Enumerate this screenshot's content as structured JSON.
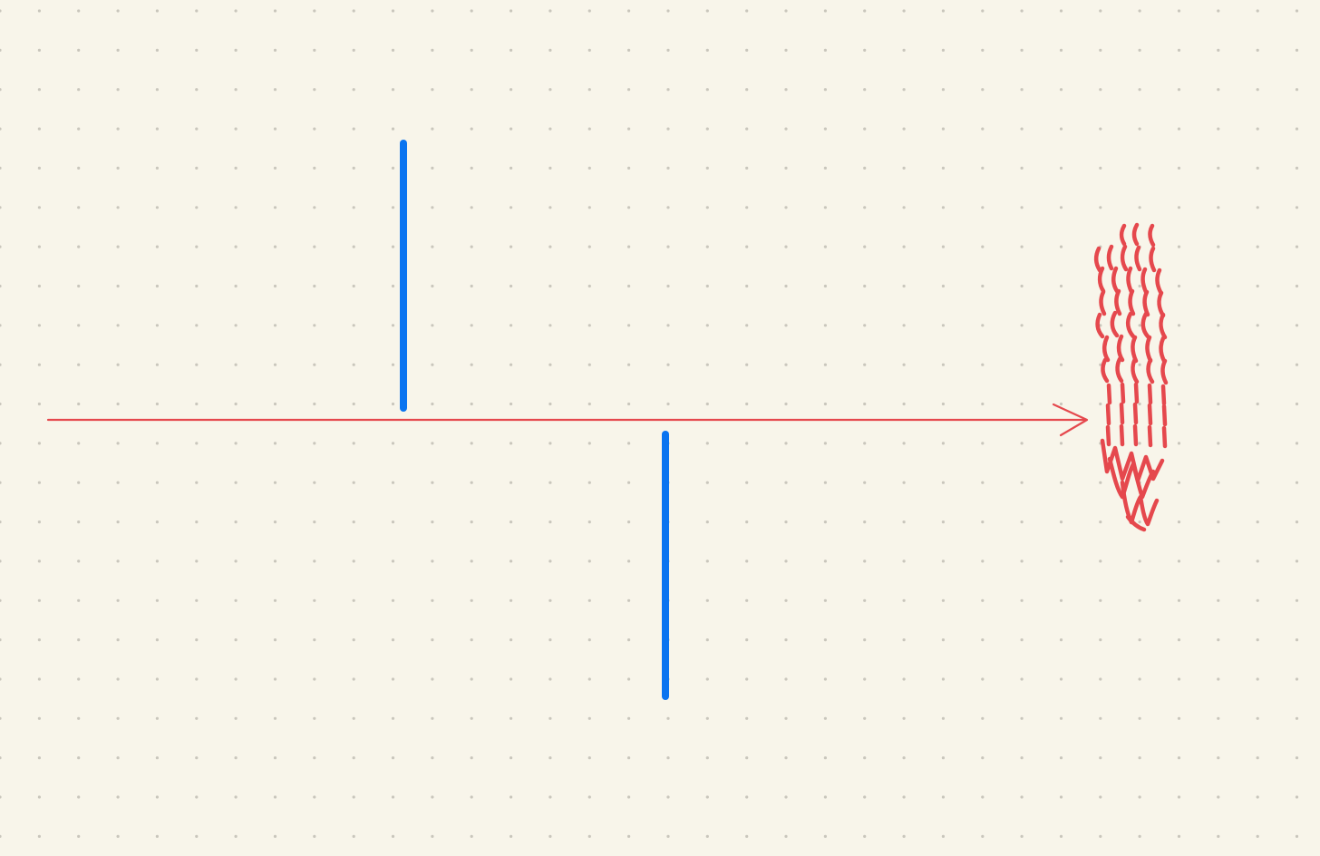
{
  "canvas": {
    "background_color": "#f8f5ea",
    "grid_dot_color": "#c9c6bc",
    "grid": "dotted"
  },
  "axis": {
    "color": "#e5484d",
    "arrow": "right"
  },
  "pulses": {
    "color": "#0a74f0",
    "items": [
      {
        "name": "positive-pulse",
        "direction": "up"
      },
      {
        "name": "negative-pulse",
        "direction": "down"
      }
    ]
  },
  "scribble": {
    "color": "#e5484d",
    "style": "handwritten squiggles"
  }
}
